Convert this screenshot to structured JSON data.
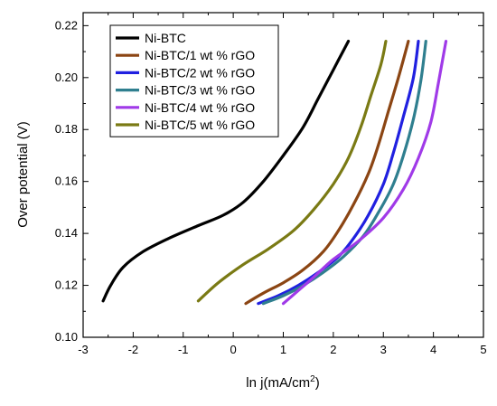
{
  "chart_data": {
    "type": "line",
    "xlabel": "ln j(mA/cm",
    "xlabel_sup": "2",
    "xlabel_end": ")",
    "ylabel": "Over potential (V)",
    "xlim": [
      -3,
      5
    ],
    "ylim": [
      0.1,
      0.225
    ],
    "xticks": [
      -3,
      -2,
      -1,
      0,
      1,
      2,
      3,
      4,
      5
    ],
    "yticks": [
      0.1,
      0.12,
      0.14,
      0.16,
      0.18,
      0.2,
      0.22
    ],
    "ytick_labels": [
      "0.10",
      "0.12",
      "0.14",
      "0.16",
      "0.18",
      "0.20",
      "0.22"
    ],
    "grid": false,
    "legend_position": "top-left",
    "series": [
      {
        "name": "Ni-BTC",
        "color": "#000000",
        "x": [
          -2.6,
          -2.45,
          -2.2,
          -1.8,
          -1.3,
          -0.7,
          -0.2,
          0.2,
          0.6,
          1.0,
          1.4,
          1.7,
          2.0,
          2.3
        ],
        "y": [
          0.114,
          0.12,
          0.127,
          0.133,
          0.138,
          0.143,
          0.147,
          0.152,
          0.16,
          0.17,
          0.181,
          0.192,
          0.203,
          0.214
        ]
      },
      {
        "name": "Ni-BTC/1 wt % rGO",
        "color": "#8b4513",
        "x": [
          0.25,
          0.6,
          1.0,
          1.4,
          1.8,
          2.1,
          2.4,
          2.7,
          2.9,
          3.1,
          3.3,
          3.5
        ],
        "y": [
          0.113,
          0.117,
          0.121,
          0.126,
          0.133,
          0.141,
          0.151,
          0.163,
          0.174,
          0.187,
          0.2,
          0.214
        ]
      },
      {
        "name": "Ni-BTC/2 wt % rGO",
        "color": "#2020e0",
        "x": [
          0.5,
          0.9,
          1.3,
          1.7,
          2.1,
          2.4,
          2.7,
          3.0,
          3.2,
          3.4,
          3.6,
          3.7
        ],
        "y": [
          0.113,
          0.116,
          0.12,
          0.125,
          0.131,
          0.138,
          0.147,
          0.159,
          0.171,
          0.185,
          0.2,
          0.214
        ]
      },
      {
        "name": "Ni-BTC/3 wt % rGO",
        "color": "#2f7f8f",
        "x": [
          0.6,
          1.0,
          1.4,
          1.8,
          2.2,
          2.6,
          2.9,
          3.2,
          3.4,
          3.6,
          3.75,
          3.85
        ],
        "y": [
          0.113,
          0.116,
          0.12,
          0.125,
          0.131,
          0.139,
          0.148,
          0.159,
          0.17,
          0.184,
          0.199,
          0.214
        ]
      },
      {
        "name": "Ni-BTC/4 wt % rGO",
        "color": "#a03ae8",
        "x": [
          1.0,
          1.3,
          1.6,
          2.0,
          2.5,
          3.0,
          3.4,
          3.7,
          3.95,
          4.1,
          4.25
        ],
        "y": [
          0.113,
          0.118,
          0.123,
          0.13,
          0.137,
          0.146,
          0.157,
          0.169,
          0.183,
          0.198,
          0.214
        ]
      },
      {
        "name": "Ni-BTC/5 wt % rGO",
        "color": "#7a7a14",
        "x": [
          -0.7,
          -0.3,
          0.2,
          0.7,
          1.2,
          1.6,
          2.0,
          2.3,
          2.55,
          2.75,
          2.95,
          3.05
        ],
        "y": [
          0.114,
          0.121,
          0.128,
          0.134,
          0.141,
          0.149,
          0.159,
          0.169,
          0.181,
          0.193,
          0.205,
          0.214
        ]
      }
    ]
  }
}
